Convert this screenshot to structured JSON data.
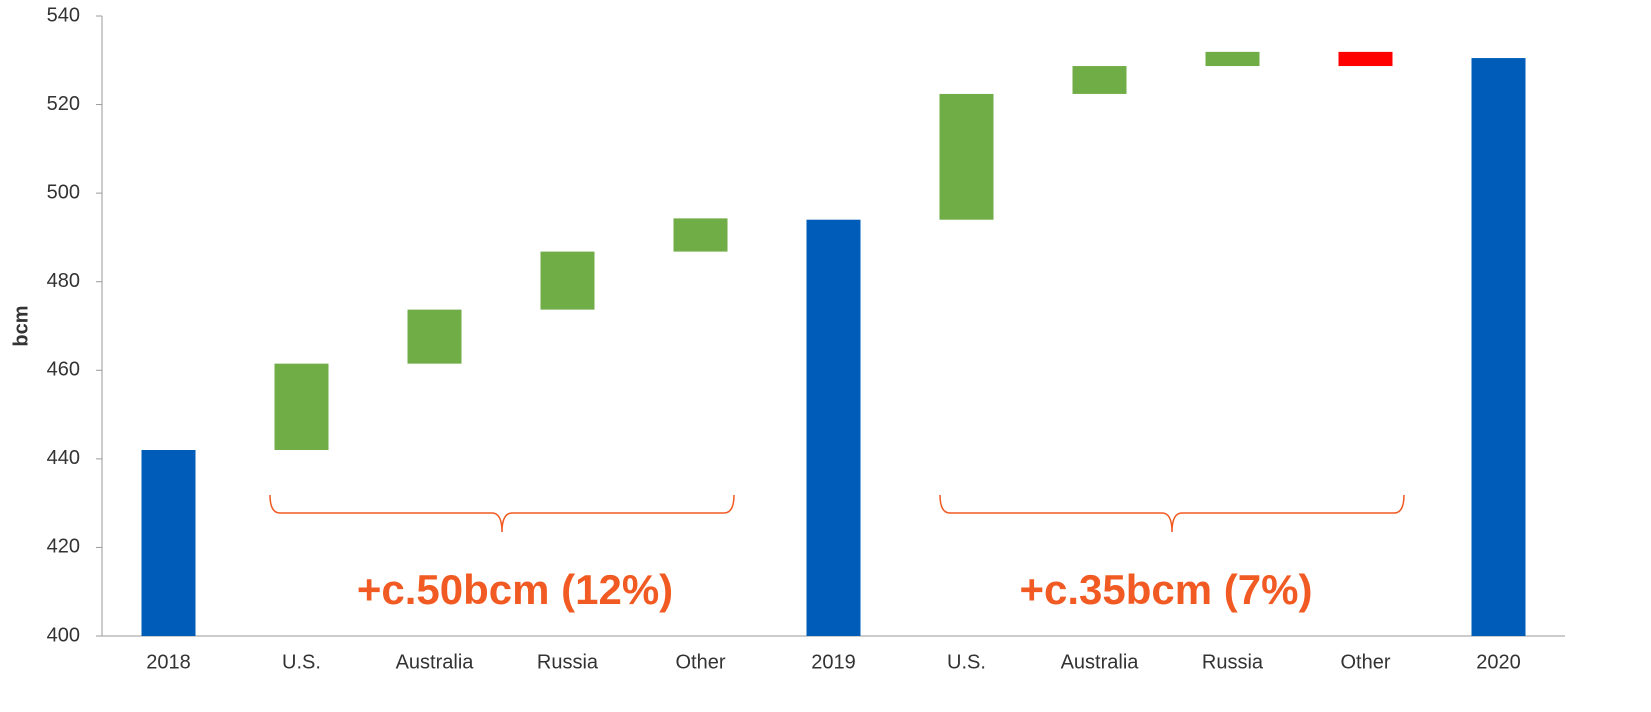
{
  "chart_data": {
    "type": "waterfall",
    "y_label": "bcm",
    "categories": [
      "2018",
      "U.S.",
      "Australia",
      "Russia",
      "Other",
      "2019",
      "U.S.",
      "Australia",
      "Russia",
      "Other",
      "2020"
    ],
    "measure": [
      "total",
      "relative",
      "relative",
      "relative",
      "relative",
      "total",
      "relative",
      "relative",
      "relative",
      "relative",
      "total"
    ],
    "values": [
      442,
      19.5,
      12.2,
      13.1,
      7.5,
      494,
      28.4,
      6.3,
      3.2,
      -3.2,
      530.5
    ],
    "colors": {
      "total": "#005cb9",
      "increase": "#70ad47",
      "decrease": "#ff0000"
    },
    "ylim": [
      400,
      540
    ],
    "yticks": [
      400,
      420,
      440,
      460,
      480,
      500,
      520,
      540
    ],
    "annotations": [
      "+c.50bcm (12%)",
      "+c.35bcm (7%)"
    ]
  }
}
